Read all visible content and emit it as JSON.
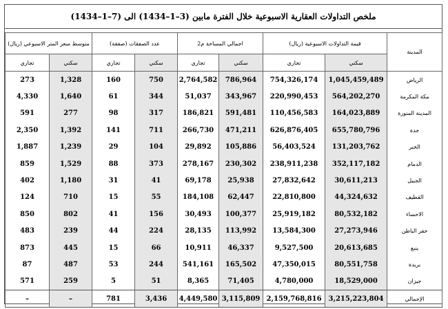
{
  "title": "ملخص التداولات العقارية الاسبوعية خلال الفترة مابين (3–1–1434) الى (7–1–1434)",
  "table": {
    "city_header": "المدينة",
    "groups": [
      {
        "label": "قيمة التداولات الاسبوعية (ريال)",
        "subs": [
          "سكني",
          "تجاري"
        ]
      },
      {
        "label": "اجمالي المساحة م2",
        "subs": [
          "سكني",
          "تجاري"
        ]
      },
      {
        "label": "عدد الصفقات (صفقة)",
        "subs": [
          "سكني",
          "تجاري"
        ]
      },
      {
        "label": "متوسط سعر المتر الاسبوعي (ريال)",
        "subs": [
          "سكني",
          "تجاري"
        ]
      }
    ],
    "rows": [
      [
        "الرياض",
        "1,045,459,489",
        "754,326,174",
        "786,964",
        "2,764,582",
        "750",
        "160",
        "1,328",
        "273"
      ],
      [
        "مكة المكرمة",
        "564,202,270",
        "220,990,453",
        "343,967",
        "51,037",
        "344",
        "61",
        "1,640",
        "4,330"
      ],
      [
        "المدينة المنورة",
        "164,023,889",
        "110,456,583",
        "591,481",
        "186,821",
        "317",
        "98",
        "277",
        "591"
      ],
      [
        "جدة",
        "655,780,796",
        "626,876,405",
        "471,211",
        "266,730",
        "711",
        "141",
        "1,392",
        "2,350"
      ],
      [
        "الخبر",
        "131,203,762",
        "56,403,524",
        "105,886",
        "29,892",
        "104",
        "29",
        "1,239",
        "1,887"
      ],
      [
        "الدمام",
        "352,117,182",
        "238,911,238",
        "230,302",
        "278,167",
        "373",
        "88",
        "1,529",
        "859"
      ],
      [
        "الجبيل",
        "30,611,213",
        "27,832,642",
        "25,938",
        "69,178",
        "41",
        "31",
        "1,180",
        "402"
      ],
      [
        "القطيف",
        "44,324,632",
        "22,810,800",
        "62,447",
        "184,108",
        "55",
        "15",
        "710",
        "124"
      ],
      [
        "الاحساء",
        "80,532,182",
        "25,919,182",
        "100,377",
        "30,493",
        "156",
        "41",
        "802",
        "850"
      ],
      [
        "حفر الباطن",
        "27,273,946",
        "13,584,300",
        "113,992",
        "28,135",
        "224",
        "44",
        "239",
        "483"
      ],
      [
        "ينبع",
        "20,613,685",
        "9,527,500",
        "46,337",
        "10,911",
        "66",
        "15",
        "445",
        "873"
      ],
      [
        "بريدة",
        "80,551,758",
        "47,350,015",
        "165,502",
        "541,161",
        "244",
        "53",
        "487",
        "87"
      ],
      [
        "جيزان",
        "18,529,000",
        "4,780,000",
        "71,405",
        "8,365",
        "51",
        "5",
        "259",
        "571"
      ]
    ],
    "total": [
      "الإجمالي",
      "3,215,223,804",
      "2,159,768,816",
      "3,115,809",
      "4,449,580",
      "3,436",
      "781",
      "–",
      "–"
    ]
  }
}
